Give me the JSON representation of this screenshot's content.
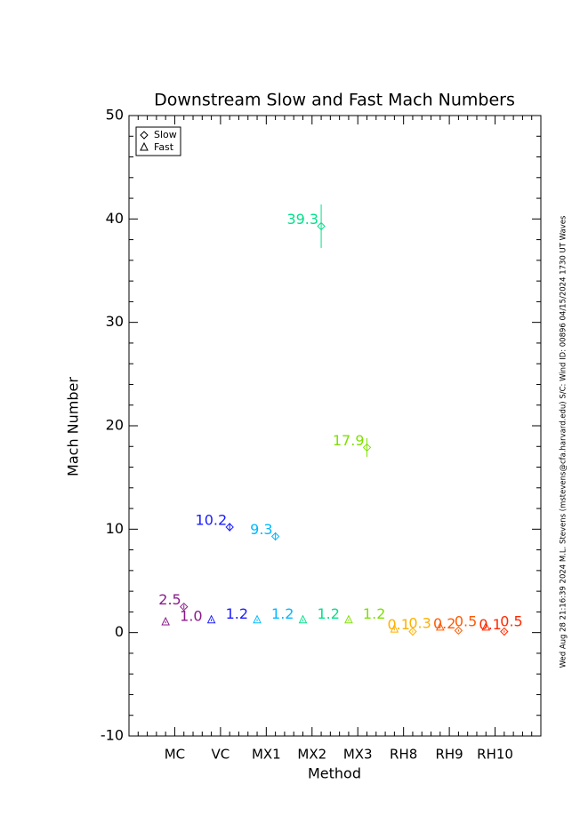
{
  "chart_data": {
    "type": "scatter",
    "title": "Downstream Slow and Fast Mach Numbers",
    "x_label": "Method",
    "y_label": "Mach Number",
    "categories": [
      "MC",
      "VC",
      "MX1",
      "MX2",
      "MX3",
      "RH8",
      "RH9",
      "RH10"
    ],
    "colors": [
      "#8a1a8a",
      "#1a1aff",
      "#00b8ff",
      "#00e08a",
      "#7ee000",
      "#ffb000",
      "#ff5a00",
      "#ff2a00"
    ],
    "xlim": [
      0,
      9
    ],
    "ylim": [
      -10,
      50
    ],
    "yticks": [
      -10,
      0,
      10,
      20,
      30,
      40,
      50
    ],
    "legend": "top-left",
    "series": [
      {
        "name": "Slow",
        "marker": "diamond",
        "offset": 0.2,
        "values": [
          2.5,
          10.2,
          9.3,
          39.3,
          17.9,
          0.1,
          0.2,
          0.1
        ],
        "errors": [
          0.2,
          0.4,
          0.4,
          2.1,
          0.9,
          0.1,
          0.1,
          0.1
        ]
      },
      {
        "name": "Fast",
        "marker": "triangle",
        "offset": -0.2,
        "values": [
          1.0,
          1.2,
          1.2,
          1.2,
          1.2,
          0.3,
          0.5,
          0.5
        ],
        "value_labels": [
          "1.0",
          "1.2",
          "1.2",
          "1.2",
          "1.2",
          "0.3",
          "0.5",
          "0.5"
        ],
        "errors": [
          0.1,
          0.1,
          0.1,
          0.1,
          0.1,
          0.1,
          0.1,
          0.1
        ]
      }
    ],
    "side_note": "Wed Aug 28 21:16:39 2024  M.L. Stevens (mstevens@cfa.harvard.edu)  S/C: Wind  ID: 00896 04/15/2024  1730 UT Waves"
  }
}
